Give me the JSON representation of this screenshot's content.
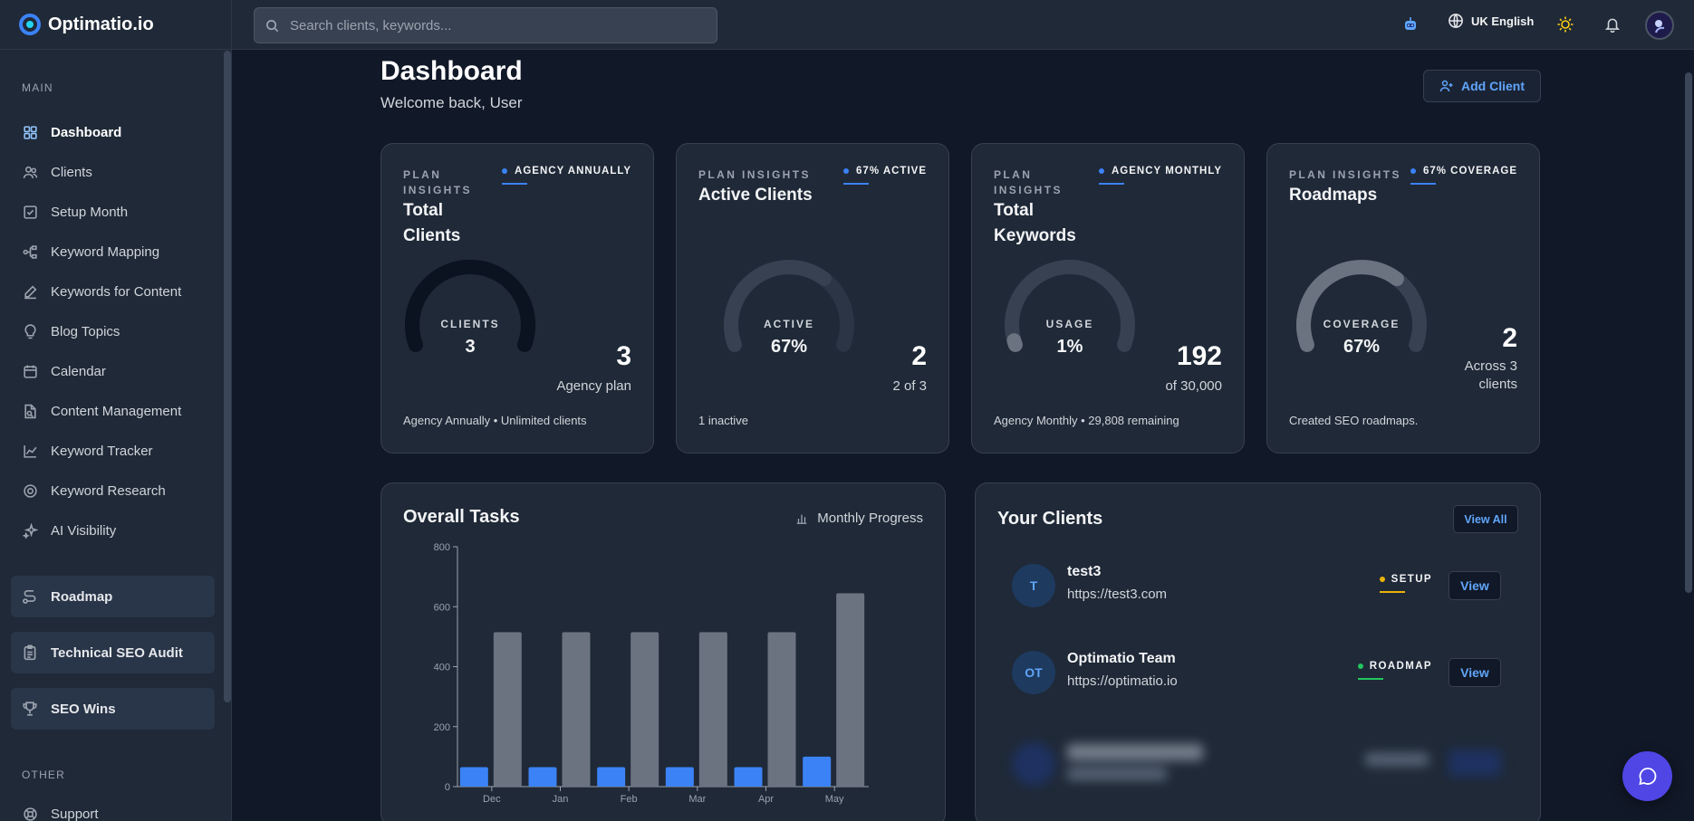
{
  "brand": {
    "name": "Optimatio.io"
  },
  "search": {
    "placeholder": "Search clients, keywords..."
  },
  "topbar": {
    "language": "UK English"
  },
  "sidebar": {
    "main_label": "MAIN",
    "other_label": "OTHER",
    "items": [
      {
        "label": "Dashboard",
        "icon": "grid-icon"
      },
      {
        "label": "Clients",
        "icon": "users-icon"
      },
      {
        "label": "Setup Month",
        "icon": "checkbox-icon"
      },
      {
        "label": "Keyword Mapping",
        "icon": "flow-icon"
      },
      {
        "label": "Keywords for Content",
        "icon": "pen-icon"
      },
      {
        "label": "Blog Topics",
        "icon": "lightbulb-icon"
      },
      {
        "label": "Calendar",
        "icon": "calendar-icon"
      },
      {
        "label": "Content Management",
        "icon": "document-icon"
      },
      {
        "label": "Keyword Tracker",
        "icon": "chart-line-icon"
      },
      {
        "label": "Keyword Research",
        "icon": "target-icon"
      },
      {
        "label": "AI Visibility",
        "icon": "sparkle-icon"
      }
    ],
    "boxed": [
      {
        "label": "Roadmap",
        "icon": "route-icon"
      },
      {
        "label": "Technical SEO Audit",
        "icon": "clipboard-icon"
      },
      {
        "label": "SEO Wins",
        "icon": "trophy-icon"
      }
    ],
    "support": "Support"
  },
  "header": {
    "title": "Dashboard",
    "subtitle": "Welcome back, User",
    "add_client": "Add Client"
  },
  "cards": [
    {
      "label": "PLAN INSIGHTS",
      "title": "Total Clients",
      "badge": "AGENCY ANNUALLY",
      "gauge_label": "CLIENTS",
      "gauge_value": "3",
      "gauge_fraction": 1.0,
      "big": "3",
      "big_sub": "Agency plan",
      "footer": "Agency Annually • Unlimited clients"
    },
    {
      "label": "PLAN INSIGHTS",
      "title": "Active Clients",
      "badge": "67% ACTIVE",
      "gauge_label": "ACTIVE",
      "gauge_value": "67%",
      "gauge_fraction": 0.67,
      "big": "2",
      "big_sub": "2 of 3",
      "footer": "1 inactive"
    },
    {
      "label": "PLAN INSIGHTS",
      "title": "Total Keywords",
      "badge": "AGENCY MONTHLY",
      "gauge_label": "USAGE",
      "gauge_value": "1%",
      "gauge_fraction": 0.01,
      "big": "192",
      "big_sub": "of 30,000",
      "footer": "Agency Monthly • 29,808 remaining"
    },
    {
      "label": "PLAN INSIGHTS",
      "title": "Roadmaps",
      "badge": "67% COVERAGE",
      "gauge_label": "COVERAGE",
      "gauge_value": "67%",
      "gauge_fraction": 0.67,
      "big": "2",
      "big_sub": "Across 3 clients",
      "footer": "Created SEO roadmaps."
    }
  ],
  "tasks": {
    "title": "Overall Tasks",
    "legend": "Monthly Progress",
    "chart_data": {
      "type": "bar",
      "categories": [
        "Dec",
        "Jan",
        "Feb",
        "Mar",
        "Apr",
        "May"
      ],
      "series": [
        {
          "values": [
            65,
            65,
            65,
            65,
            65,
            100
          ],
          "color": "#3b82f6"
        },
        {
          "values": [
            515,
            515,
            515,
            515,
            515,
            645
          ],
          "color": "#6b7280"
        }
      ],
      "ylim": [
        0,
        800
      ],
      "yticks": [
        0,
        200,
        400,
        600,
        800
      ]
    }
  },
  "clients": {
    "title": "Your Clients",
    "view_all": "View All",
    "rows": [
      {
        "initials": "T",
        "name": "test3",
        "url": "https://test3.com",
        "status": "SETUP",
        "status_color": "#eab308",
        "view": "View"
      },
      {
        "initials": "OT",
        "name": "Optimatio Team",
        "url": "https://optimatio.io",
        "status": "ROADMAP",
        "status_color": "#22c55e",
        "view": "View"
      }
    ]
  }
}
